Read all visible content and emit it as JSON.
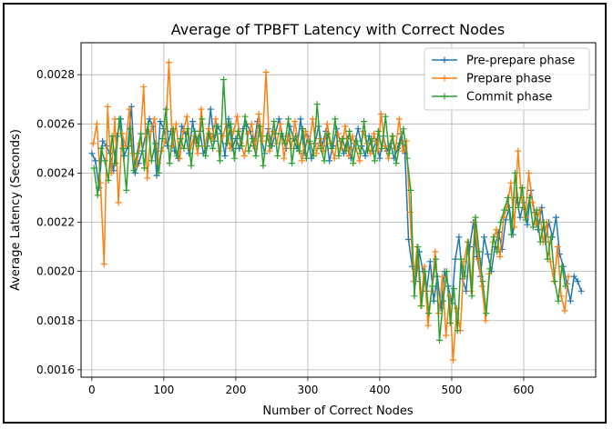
{
  "chart_data": {
    "type": "line",
    "title": "Average of TPBFT Latency with Correct Nodes",
    "xlabel": "Number of Correct Nodes",
    "ylabel": "Average Latency (Seconds)",
    "xlim": [
      -15,
      700
    ],
    "ylim": [
      0.00157,
      0.00293
    ],
    "xticks": [
      0,
      100,
      200,
      300,
      400,
      500,
      600
    ],
    "xtick_labels": [
      "0",
      "100",
      "200",
      "300",
      "400",
      "500",
      "600"
    ],
    "yticks": [
      0.0016,
      0.0018,
      0.002,
      0.0022,
      0.0024,
      0.0026,
      0.0028
    ],
    "ytick_labels": [
      "0.0016",
      "0.0018",
      "0.0020",
      "0.0022",
      "0.0024",
      "0.0026",
      "0.0028"
    ],
    "grid": true,
    "legend_position": "top-right",
    "marker": "+",
    "series": [
      {
        "name": "Pre-prepare phase",
        "color": "#1f77b4",
        "x_start": 0,
        "x_step": 5,
        "values": [
          0.00248,
          0.00245,
          0.00234,
          0.00253,
          0.00251,
          0.00248,
          0.00241,
          0.00255,
          0.00262,
          0.00247,
          0.00251,
          0.00267,
          0.0024,
          0.00244,
          0.00249,
          0.00256,
          0.00262,
          0.00259,
          0.00239,
          0.00261,
          0.00258,
          0.00251,
          0.00257,
          0.00249,
          0.00246,
          0.00259,
          0.00256,
          0.00248,
          0.00261,
          0.00252,
          0.00257,
          0.00248,
          0.00251,
          0.00266,
          0.00253,
          0.00259,
          0.00256,
          0.00247,
          0.00262,
          0.0025,
          0.00254,
          0.0025,
          0.00258,
          0.0026,
          0.00257,
          0.00251,
          0.00261,
          0.00255,
          0.00248,
          0.00258,
          0.00251,
          0.00256,
          0.00262,
          0.00255,
          0.0025,
          0.00259,
          0.00254,
          0.0025,
          0.00262,
          0.00248,
          0.00255,
          0.00246,
          0.00252,
          0.00259,
          0.00251,
          0.00257,
          0.00245,
          0.00251,
          0.00258,
          0.00253,
          0.00248,
          0.00254,
          0.00246,
          0.00252,
          0.00258,
          0.00251,
          0.00247,
          0.00255,
          0.00249,
          0.00253,
          0.00246,
          0.00255,
          0.00249,
          0.00252,
          0.00246,
          0.0025,
          0.00256,
          0.00248,
          0.00213,
          0.00202,
          0.00196,
          0.00208,
          0.002,
          0.00192,
          0.00204,
          0.00188,
          0.00198,
          0.00185,
          0.002,
          0.00194,
          0.00187,
          0.00205,
          0.00214,
          0.00197,
          0.00192,
          0.0021,
          0.0022,
          0.00206,
          0.00198,
          0.00214,
          0.00207,
          0.002,
          0.0021,
          0.00216,
          0.00209,
          0.00221,
          0.00226,
          0.00215,
          0.0023,
          0.00222,
          0.00228,
          0.00219,
          0.00233,
          0.00224,
          0.00217,
          0.00226,
          0.00212,
          0.0022,
          0.00214,
          0.00222,
          0.00207,
          0.00202,
          0.00195,
          0.00188,
          0.00198,
          0.00196,
          0.00192
        ]
      },
      {
        "name": "Prepare phase",
        "color": "#ff7f0e",
        "x_start": 2,
        "x_step": 5,
        "values": [
          0.00252,
          0.0026,
          0.00236,
          0.00203,
          0.00267,
          0.0024,
          0.00262,
          0.00228,
          0.00256,
          0.00251,
          0.00266,
          0.00248,
          0.00243,
          0.00252,
          0.00275,
          0.00238,
          0.00257,
          0.00262,
          0.00244,
          0.00249,
          0.00253,
          0.00285,
          0.00251,
          0.0026,
          0.00246,
          0.00257,
          0.00263,
          0.0025,
          0.00255,
          0.00248,
          0.00266,
          0.00251,
          0.00258,
          0.00254,
          0.00262,
          0.00249,
          0.00255,
          0.0026,
          0.0025,
          0.00257,
          0.00263,
          0.00252,
          0.00247,
          0.00256,
          0.0026,
          0.0025,
          0.00264,
          0.00253,
          0.00281,
          0.00249,
          0.00257,
          0.00252,
          0.0026,
          0.00246,
          0.00255,
          0.0025,
          0.00261,
          0.00252,
          0.00245,
          0.00257,
          0.00252,
          0.00262,
          0.00248,
          0.00254,
          0.00249,
          0.0026,
          0.00252,
          0.00246,
          0.00256,
          0.0025,
          0.00259,
          0.00247,
          0.00255,
          0.0025,
          0.00245,
          0.00257,
          0.00252,
          0.00248,
          0.00256,
          0.00249,
          0.00264,
          0.00251,
          0.00246,
          0.00255,
          0.0025,
          0.00262,
          0.00249,
          0.00253,
          0.00224,
          0.00196,
          0.0021,
          0.00186,
          0.00202,
          0.00178,
          0.00192,
          0.00208,
          0.00183,
          0.00198,
          0.00174,
          0.0019,
          0.00164,
          0.00185,
          0.00176,
          0.00204,
          0.00212,
          0.00192,
          0.0022,
          0.00205,
          0.00194,
          0.0018,
          0.00199,
          0.00212,
          0.00217,
          0.00206,
          0.00222,
          0.00226,
          0.00236,
          0.00218,
          0.00249,
          0.0023,
          0.00222,
          0.0024,
          0.00228,
          0.00219,
          0.00225,
          0.00212,
          0.0022,
          0.00204,
          0.00196,
          0.0021,
          0.0019,
          0.00184,
          0.00198
        ]
      },
      {
        "name": "Commit phase",
        "color": "#2ca02c",
        "x_start": 3,
        "x_step": 5,
        "values": [
          0.00242,
          0.00231,
          0.0025,
          0.00245,
          0.00237,
          0.00255,
          0.00244,
          0.00262,
          0.0025,
          0.00233,
          0.00258,
          0.00241,
          0.00248,
          0.00256,
          0.00242,
          0.0026,
          0.00245,
          0.00252,
          0.0024,
          0.00254,
          0.00266,
          0.00244,
          0.00258,
          0.00247,
          0.00254,
          0.0025,
          0.00258,
          0.00243,
          0.00257,
          0.00251,
          0.00262,
          0.00247,
          0.00256,
          0.0025,
          0.00259,
          0.00245,
          0.00278,
          0.00252,
          0.0026,
          0.00246,
          0.00257,
          0.00251,
          0.00263,
          0.00249,
          0.00254,
          0.00247,
          0.00259,
          0.00243,
          0.00255,
          0.00251,
          0.00261,
          0.00247,
          0.00256,
          0.00252,
          0.00262,
          0.00244,
          0.00255,
          0.00249,
          0.00258,
          0.00246,
          0.00253,
          0.00247,
          0.00268,
          0.0025,
          0.00245,
          0.00256,
          0.0025,
          0.00262,
          0.00247,
          0.00254,
          0.00249,
          0.00257,
          0.00244,
          0.00253,
          0.00248,
          0.00261,
          0.00249,
          0.00254,
          0.00245,
          0.00257,
          0.0025,
          0.00263,
          0.00248,
          0.00255,
          0.00244,
          0.00252,
          0.00258,
          0.00246,
          0.00233,
          0.0019,
          0.0021,
          0.00186,
          0.002,
          0.00183,
          0.00194,
          0.00205,
          0.00172,
          0.00188,
          0.002,
          0.00179,
          0.00193,
          0.00176,
          0.00205,
          0.00198,
          0.00212,
          0.0019,
          0.00222,
          0.00208,
          0.00196,
          0.00183,
          0.00201,
          0.00214,
          0.00208,
          0.0022,
          0.00225,
          0.0023,
          0.00215,
          0.0024,
          0.00226,
          0.00234,
          0.00221,
          0.0023,
          0.00218,
          0.00225,
          0.00212,
          0.0022,
          0.00205,
          0.00214,
          0.00196,
          0.00188,
          0.00202,
          0.00194
        ]
      }
    ]
  }
}
